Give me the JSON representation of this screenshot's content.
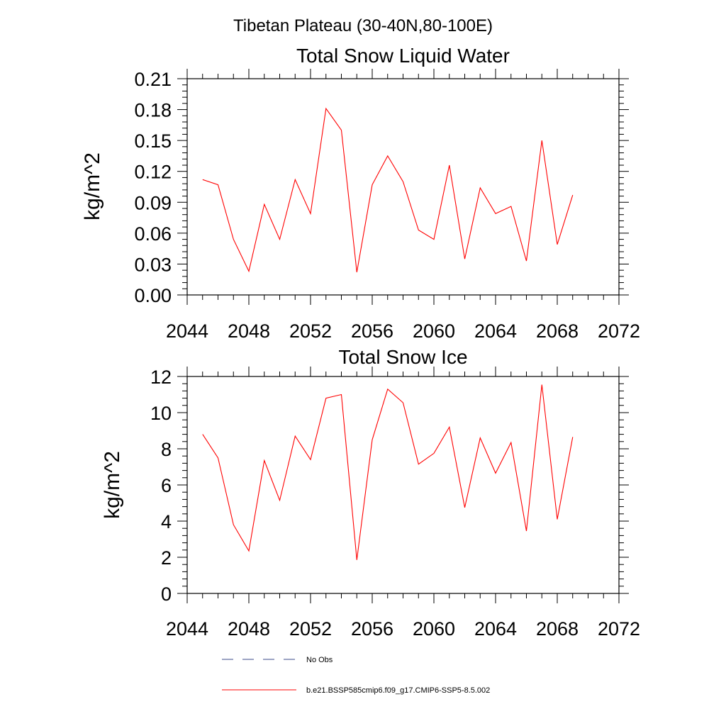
{
  "figure_title": "Tibetan Plateau (30-40N,80-100E)",
  "chart_data": [
    {
      "type": "line",
      "title": "Total Snow Liquid Water",
      "xlabel": "",
      "ylabel": "kg/m^2",
      "xlim": [
        2044,
        2072
      ],
      "ylim": [
        0,
        0.21
      ],
      "x_ticks": [
        "2044",
        "2048",
        "2052",
        "2056",
        "2060",
        "2064",
        "2068",
        "2072"
      ],
      "y_ticks": [
        "0.00",
        "0.03",
        "0.06",
        "0.09",
        "0.12",
        "0.15",
        "0.18",
        "0.21"
      ],
      "grid": false,
      "series": [
        {
          "name": "b.e21.BSSP585cmip6.f09_g17.CMIP6-SSP5-8.5.002",
          "color": "#ff0000",
          "x": [
            2045,
            2046,
            2047,
            2048,
            2049,
            2050,
            2051,
            2052,
            2053,
            2054,
            2055,
            2056,
            2057,
            2058,
            2059,
            2060,
            2061,
            2062,
            2063,
            2064,
            2065,
            2066,
            2067,
            2068,
            2069
          ],
          "values": [
            0.112,
            0.107,
            0.054,
            0.023,
            0.088,
            0.054,
            0.112,
            0.079,
            0.181,
            0.16,
            0.022,
            0.107,
            0.135,
            0.11,
            0.063,
            0.054,
            0.126,
            0.035,
            0.104,
            0.079,
            0.086,
            0.033,
            0.15,
            0.049,
            0.097
          ]
        }
      ]
    },
    {
      "type": "line",
      "title": "Total Snow Ice",
      "xlabel": "",
      "ylabel": "kg/m^2",
      "xlim": [
        2044,
        2072
      ],
      "ylim": [
        0,
        12
      ],
      "x_ticks": [
        "2044",
        "2048",
        "2052",
        "2056",
        "2060",
        "2064",
        "2068",
        "2072"
      ],
      "y_ticks": [
        "0",
        "2",
        "4",
        "6",
        "8",
        "10",
        "12"
      ],
      "grid": false,
      "series": [
        {
          "name": "b.e21.BSSP585cmip6.f09_g17.CMIP6-SSP5-8.5.002",
          "color": "#ff0000",
          "x": [
            2045,
            2046,
            2047,
            2048,
            2049,
            2050,
            2051,
            2052,
            2053,
            2054,
            2055,
            2056,
            2057,
            2058,
            2059,
            2060,
            2061,
            2062,
            2063,
            2064,
            2065,
            2066,
            2067,
            2068,
            2069
          ],
          "values": [
            8.8,
            7.5,
            3.8,
            2.35,
            7.35,
            5.15,
            8.7,
            7.4,
            10.8,
            11.0,
            1.85,
            8.5,
            11.3,
            10.55,
            7.15,
            7.75,
            9.2,
            4.75,
            8.6,
            6.65,
            8.35,
            3.45,
            11.55,
            4.1,
            8.65
          ]
        }
      ]
    }
  ],
  "legend": {
    "placement": "bottom",
    "entries": [
      {
        "label": "No Obs",
        "color": "#3a4a8a",
        "style": "dashed"
      },
      {
        "label": "b.e21.BSSP585cmip6.f09_g17.CMIP6-SSP5-8.5.002",
        "color": "#ff0000",
        "style": "solid"
      }
    ]
  }
}
